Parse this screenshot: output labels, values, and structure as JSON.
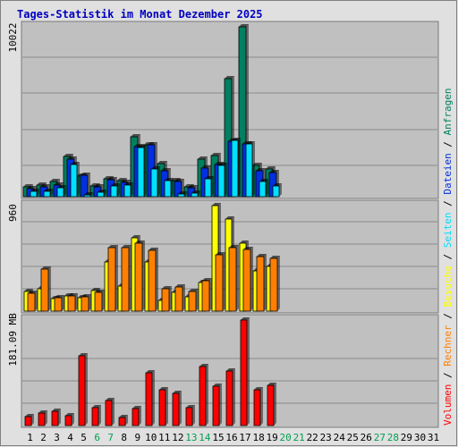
{
  "title": "Tages-Statistik im Monat Dezember 2025",
  "colors": {
    "frame_bg": "#e0e0e0",
    "plot_bg": "#c0c0c0",
    "anfragen": "#008060",
    "dateien": "#0030e0",
    "seiten": "#00e0ff",
    "besuche": "#ffff00",
    "rechner": "#ff8000",
    "volumen": "#ff0000",
    "day_weekday": "#000000",
    "day_weekend": "#00a050"
  },
  "legend": {
    "anfragen": "Anfragen",
    "dateien": "Dateien",
    "seiten": "Seiten",
    "besuche": "Besuche",
    "rechner": "Rechner",
    "volumen": "Volumen",
    "separator": "/"
  },
  "chart_data": {
    "type": "bar",
    "categories": [
      "1",
      "2",
      "3",
      "4",
      "5",
      "6",
      "7",
      "8",
      "9",
      "10",
      "11",
      "12",
      "13",
      "14",
      "15",
      "16",
      "17",
      "18",
      "19",
      "20",
      "21",
      "22",
      "23",
      "24",
      "25",
      "26",
      "27",
      "28",
      "29",
      "30",
      "31"
    ],
    "weekend_days": [
      "6",
      "7",
      "13",
      "14",
      "20",
      "21",
      "27",
      "28"
    ],
    "panels": [
      {
        "ymax_label": "10022",
        "ymax": 10022,
        "series": [
          {
            "name": "Anfragen",
            "values": [
              560,
              670,
              880,
              2400,
              1230,
              650,
              1040,
              930,
              3540,
              3070,
              1950,
              960,
              560,
              2190,
              2420,
              6940,
              10022,
              1870,
              1650,
              0,
              0,
              0,
              0,
              0,
              0,
              0,
              0,
              0,
              0,
              0,
              0
            ]
          },
          {
            "name": "Dateien",
            "values": [
              500,
              600,
              700,
              2240,
              1270,
              600,
              1000,
              860,
              2960,
              3070,
              1530,
              880,
              520,
              1670,
              1920,
              3270,
              3120,
              1550,
              1450,
              0,
              0,
              0,
              0,
              0,
              0,
              0,
              0,
              0,
              0,
              0,
              0
            ]
          },
          {
            "name": "Seiten",
            "values": [
              300,
              320,
              520,
              1920,
              120,
              290,
              620,
              700,
              2900,
              1620,
              950,
              180,
              230,
              1030,
              1870,
              3300,
              3100,
              880,
              650,
              0,
              0,
              0,
              0,
              0,
              0,
              0,
              0,
              0,
              0,
              0,
              0
            ]
          }
        ]
      },
      {
        "ymax_label": "960",
        "ymax": 960,
        "series": [
          {
            "name": "Besuche",
            "values": [
              180,
              200,
              110,
              140,
              120,
              190,
              450,
              230,
              670,
              450,
              100,
              170,
              130,
              260,
              960,
              840,
              620,
              370,
              410,
              0,
              0,
              0,
              0,
              0,
              0,
              0,
              0,
              0,
              0,
              0,
              0
            ]
          },
          {
            "name": "Rechner",
            "values": [
              160,
              380,
              120,
              140,
              130,
              170,
              580,
              580,
              620,
              550,
              200,
              220,
              180,
              280,
              510,
              580,
              560,
              500,
              480,
              0,
              0,
              0,
              0,
              0,
              0,
              0,
              0,
              0,
              0,
              0,
              0
            ]
          }
        ]
      },
      {
        "ymax_label": "181.09 MB",
        "ymax": 181.09,
        "unit": "MB",
        "series": [
          {
            "name": "Volumen",
            "values": [
              16,
              22,
              25,
              17,
              120,
              31,
              43,
              14,
              29,
              91,
              62,
              55,
              30,
              102,
              67,
              93,
              181.09,
              61,
              69,
              0,
              0,
              0,
              0,
              0,
              0,
              0,
              0,
              0,
              0,
              0,
              0
            ]
          }
        ]
      }
    ],
    "grid": true,
    "legend_position": "right"
  }
}
